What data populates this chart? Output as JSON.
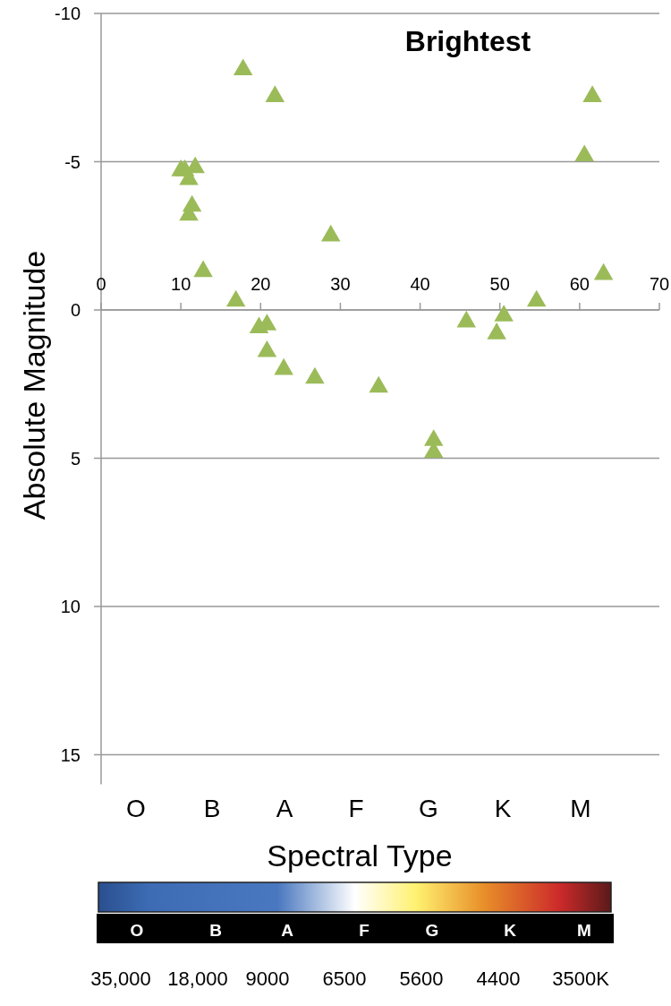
{
  "chart_data": {
    "type": "scatter",
    "title": "Brightest",
    "xlabel": "Spectral Type",
    "ylabel": "Absolute Magnitude",
    "x": [
      17.8,
      21.8,
      10.0,
      10.5,
      11.8,
      11.0,
      11.4,
      11.0,
      28.8,
      12.8,
      16.9,
      19.8,
      20.8,
      20.8,
      22.9,
      26.8,
      34.8,
      61.6,
      60.6,
      63.0,
      54.6,
      50.5,
      49.6,
      45.8,
      41.7,
      41.7
    ],
    "series": [
      {
        "color": "#9bbb59",
        "values": [
          -8.1,
          -7.2,
          -4.7,
          -4.7,
          -4.8,
          -4.4,
          -3.5,
          -3.2,
          -2.5,
          -1.3,
          -0.3,
          0.6,
          0.5,
          1.4,
          2.0,
          2.3,
          2.6,
          -7.2,
          -5.2,
          -1.2,
          -0.3,
          0.2,
          0.8,
          0.4,
          4.4,
          4.8
        ]
      }
    ],
    "marker": "triangle",
    "xlim": [
      0,
      70
    ],
    "xticks": [
      0,
      10,
      20,
      30,
      40,
      50,
      60,
      70
    ],
    "ylim": [
      16,
      -10
    ],
    "yticks": [
      -10,
      -5,
      0,
      5,
      10,
      15
    ],
    "grid": "y",
    "annotations": [
      "O",
      "B",
      "A",
      "F",
      "G",
      "K",
      "M",
      "O",
      "B",
      "A",
      "F",
      "G",
      "K",
      "M",
      "35,000",
      "18,000",
      "9000",
      "6500",
      "5600",
      "4400",
      "3500K"
    ]
  }
}
